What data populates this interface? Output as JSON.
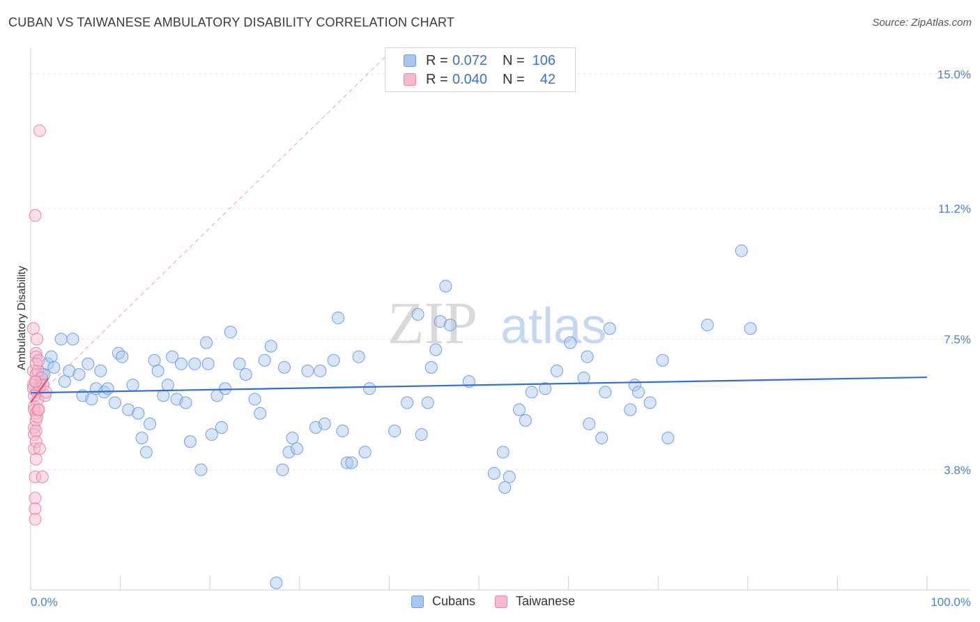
{
  "header": {
    "title": "CUBAN VS TAIWANESE AMBULATORY DISABILITY CORRELATION CHART",
    "source": "Source: ZipAtlas.com"
  },
  "legend": {
    "rows": [
      {
        "r_label": "R =",
        "r_value": "0.072",
        "n_label": "N =",
        "n_value": "106",
        "color": "#a9c6f0",
        "border": "#6f9fe0"
      },
      {
        "r_label": "R =",
        "r_value": "0.040",
        "n_label": "N =",
        "n_value": "42",
        "color": "#f7b9cb",
        "border": "#e58aa6"
      }
    ]
  },
  "bottom_legend": {
    "items": [
      {
        "label": "Cubans",
        "color": "#a9c6f0",
        "border": "#6f9fe0"
      },
      {
        "label": "Taiwanese",
        "color": "#f7b9cb",
        "border": "#e58aa6"
      }
    ]
  },
  "watermark": {
    "zip": "ZIP",
    "atlas": "atlas"
  },
  "chart_data": {
    "type": "scatter",
    "title": "CUBAN VS TAIWANESE AMBULATORY DISABILITY CORRELATION CHART",
    "xlabel": "",
    "ylabel": "Ambulatory Disability",
    "xlim": [
      0,
      100
    ],
    "ylim": [
      0.4,
      15.6
    ],
    "x_tick_labels": [
      "0.0%",
      "100.0%"
    ],
    "y_ticks": [
      3.8,
      7.5,
      11.2,
      15.0
    ],
    "y_tick_labels": [
      "3.8%",
      "7.5%",
      "11.2%",
      "15.0%"
    ],
    "grid": true,
    "legend_position": "top-center",
    "series": [
      {
        "name": "Cubans",
        "color": "#6f9fe0",
        "fill": "rgba(169,198,240,0.45)",
        "trend": {
          "x": [
            0,
            100
          ],
          "y": [
            5.98,
            6.42
          ],
          "color": "#2f6fd0"
        },
        "points": [
          [
            1.0,
            6.2
          ],
          [
            1.2,
            6.4
          ],
          [
            1.3,
            6.5
          ],
          [
            1.5,
            6.5
          ],
          [
            1.9,
            6.8
          ],
          [
            2.3,
            7.0
          ],
          [
            2.6,
            6.7
          ],
          [
            3.4,
            7.5
          ],
          [
            3.8,
            6.3
          ],
          [
            4.3,
            6.6
          ],
          [
            4.7,
            7.5
          ],
          [
            5.4,
            6.5
          ],
          [
            5.8,
            5.9
          ],
          [
            6.4,
            6.8
          ],
          [
            6.8,
            5.8
          ],
          [
            7.3,
            6.1
          ],
          [
            7.8,
            6.6
          ],
          [
            8.2,
            6.0
          ],
          [
            8.6,
            6.1
          ],
          [
            9.4,
            5.7
          ],
          [
            9.8,
            7.1
          ],
          [
            10.2,
            7.0
          ],
          [
            10.9,
            5.5
          ],
          [
            11.4,
            6.2
          ],
          [
            12.0,
            5.4
          ],
          [
            12.4,
            4.7
          ],
          [
            12.9,
            4.3
          ],
          [
            13.3,
            5.1
          ],
          [
            13.8,
            6.9
          ],
          [
            14.2,
            6.6
          ],
          [
            14.8,
            5.9
          ],
          [
            15.3,
            6.2
          ],
          [
            15.8,
            7.0
          ],
          [
            16.3,
            5.8
          ],
          [
            16.8,
            6.8
          ],
          [
            17.3,
            5.7
          ],
          [
            17.8,
            4.6
          ],
          [
            18.3,
            6.8
          ],
          [
            19.0,
            3.8
          ],
          [
            19.6,
            7.4
          ],
          [
            19.8,
            6.8
          ],
          [
            20.2,
            4.8
          ],
          [
            20.8,
            5.9
          ],
          [
            21.3,
            5.0
          ],
          [
            21.7,
            6.1
          ],
          [
            22.3,
            7.7
          ],
          [
            23.3,
            6.8
          ],
          [
            24.0,
            6.5
          ],
          [
            25.0,
            5.8
          ],
          [
            25.6,
            5.4
          ],
          [
            26.1,
            6.9
          ],
          [
            26.8,
            7.3
          ],
          [
            27.4,
            0.6
          ],
          [
            28.1,
            3.8
          ],
          [
            28.3,
            6.7
          ],
          [
            28.8,
            4.3
          ],
          [
            29.2,
            4.7
          ],
          [
            29.7,
            4.4
          ],
          [
            30.9,
            6.6
          ],
          [
            31.8,
            5.0
          ],
          [
            32.3,
            6.6
          ],
          [
            32.8,
            5.1
          ],
          [
            33.8,
            6.9
          ],
          [
            34.3,
            8.1
          ],
          [
            34.8,
            4.9
          ],
          [
            35.3,
            4.0
          ],
          [
            35.8,
            4.0
          ],
          [
            36.6,
            7.0
          ],
          [
            37.3,
            4.3
          ],
          [
            37.8,
            6.1
          ],
          [
            40.6,
            4.9
          ],
          [
            42.0,
            5.7
          ],
          [
            43.2,
            8.2
          ],
          [
            43.6,
            4.8
          ],
          [
            44.3,
            5.7
          ],
          [
            44.7,
            6.7
          ],
          [
            45.2,
            7.2
          ],
          [
            45.7,
            8.0
          ],
          [
            46.3,
            9.0
          ],
          [
            46.8,
            7.9
          ],
          [
            48.9,
            6.3
          ],
          [
            51.7,
            3.7
          ],
          [
            52.7,
            4.3
          ],
          [
            52.9,
            3.3
          ],
          [
            53.4,
            3.6
          ],
          [
            54.5,
            5.5
          ],
          [
            55.2,
            5.2
          ],
          [
            55.9,
            6.0
          ],
          [
            57.4,
            6.1
          ],
          [
            58.7,
            6.6
          ],
          [
            60.2,
            7.4
          ],
          [
            61.7,
            6.4
          ],
          [
            62.1,
            7.0
          ],
          [
            62.3,
            5.1
          ],
          [
            63.7,
            4.7
          ],
          [
            64.1,
            6.0
          ],
          [
            64.6,
            7.8
          ],
          [
            66.9,
            5.5
          ],
          [
            67.4,
            6.2
          ],
          [
            67.8,
            6.0
          ],
          [
            69.1,
            5.7
          ],
          [
            70.5,
            6.9
          ],
          [
            71.1,
            4.7
          ],
          [
            75.5,
            7.9
          ],
          [
            79.3,
            10.0
          ],
          [
            80.3,
            7.8
          ]
        ]
      },
      {
        "name": "Taiwanese",
        "color": "#e58aa6",
        "fill": "rgba(247,185,203,0.45)",
        "trend": {
          "x": [
            0,
            2.0
          ],
          "y": [
            5.7,
            6.4
          ],
          "color": "#e0507e"
        },
        "points": [
          [
            0.3,
            7.8
          ],
          [
            0.3,
            6.6
          ],
          [
            0.3,
            6.2
          ],
          [
            0.3,
            6.1
          ],
          [
            0.4,
            5.6
          ],
          [
            0.4,
            5.5
          ],
          [
            0.4,
            5.0
          ],
          [
            0.4,
            4.8
          ],
          [
            0.4,
            4.4
          ],
          [
            0.5,
            3.6
          ],
          [
            0.5,
            3.0
          ],
          [
            0.5,
            2.7
          ],
          [
            0.5,
            2.4
          ],
          [
            0.5,
            11.0
          ],
          [
            0.6,
            7.1
          ],
          [
            0.6,
            7.0
          ],
          [
            0.6,
            6.8
          ],
          [
            0.6,
            6.5
          ],
          [
            0.6,
            6.3
          ],
          [
            0.6,
            5.4
          ],
          [
            0.6,
            5.2
          ],
          [
            0.6,
            4.9
          ],
          [
            0.6,
            4.6
          ],
          [
            0.6,
            4.1
          ],
          [
            0.7,
            7.5
          ],
          [
            0.7,
            6.0
          ],
          [
            0.7,
            5.3
          ],
          [
            0.8,
            6.6
          ],
          [
            0.8,
            5.8
          ],
          [
            0.8,
            5.5
          ],
          [
            0.9,
            6.9
          ],
          [
            0.9,
            5.5
          ],
          [
            1.0,
            13.4
          ],
          [
            1.0,
            6.1
          ],
          [
            1.0,
            4.4
          ],
          [
            1.2,
            6.4
          ],
          [
            1.3,
            3.6
          ],
          [
            1.4,
            6.2
          ],
          [
            1.6,
            5.9
          ],
          [
            1.7,
            6.0
          ],
          [
            0.4,
            5.9
          ],
          [
            0.5,
            6.3
          ]
        ]
      }
    ],
    "reference_line": {
      "x": [
        0,
        40
      ],
      "y": [
        5.7,
        15.6
      ],
      "style": "dashed",
      "color": "#e8a0b5"
    }
  }
}
